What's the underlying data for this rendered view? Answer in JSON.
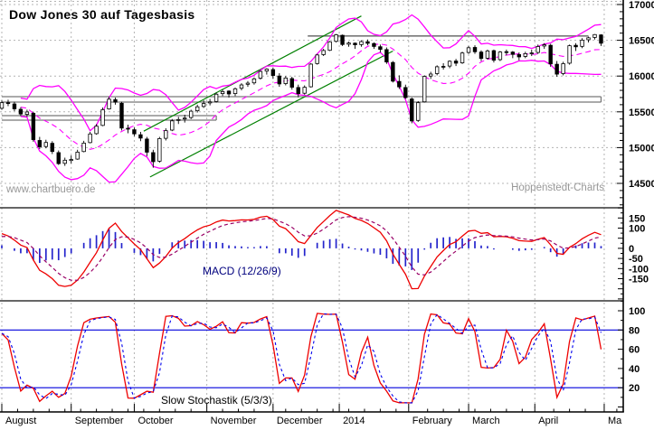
{
  "title": "Dow Jones 30 auf Tagesbasis",
  "watermarks": {
    "left": "www.chartbuero.de",
    "right": "Hoppenstedt-Charts"
  },
  "colors": {
    "candle": "#000000",
    "candle_up_fill": "#ffffff",
    "bollinger": "#ff00ff",
    "trendline": "#008000",
    "support_line": "#787878",
    "macd_line": "#ee0000",
    "macd_signal": "#990066",
    "macd_histogram": "#2424cc",
    "stoch_k": "#ee0000",
    "stoch_d": "#0000ee",
    "stoch_levels": "#0000dd",
    "grid": "#b4b4b4",
    "axis": "#000000",
    "watermark": "#989898",
    "macd_label_text": "#00007e"
  },
  "chart_data": {
    "type": "candlestick_with_indicators",
    "title": "Dow Jones 30 auf Tagesbasis",
    "x_axis": {
      "tick_labels": [
        "August",
        "September",
        "October",
        "November",
        "December",
        "2014",
        "February",
        "March",
        "April",
        "Ma"
      ],
      "tick_days": [
        0,
        22,
        42,
        65,
        86,
        107,
        129,
        148,
        169,
        191
      ],
      "minor_tick_step_days": 5,
      "total_days": 197
    },
    "price_panel": {
      "ylim": [
        14160,
        17063
      ],
      "yticks": [
        17000,
        16500,
        16000,
        15500,
        15000,
        14500
      ],
      "bollinger_period": 20,
      "candle_day_step": 2,
      "candles": [
        [
          15550,
          15658,
          15530,
          15628
        ],
        [
          15628,
          15670,
          15580,
          15618
        ],
        [
          15610,
          15640,
          15510,
          15542
        ],
        [
          15535,
          15565,
          15440,
          15470
        ],
        [
          15465,
          15530,
          15430,
          15498
        ],
        [
          15480,
          15500,
          15082,
          15112
        ],
        [
          15100,
          15150,
          14980,
          15010
        ],
        [
          15015,
          15110,
          14990,
          15072
        ],
        [
          15060,
          15090,
          14910,
          14946
        ],
        [
          14930,
          14960,
          14758,
          14776
        ],
        [
          14780,
          14860,
          14745,
          14824
        ],
        [
          14820,
          14890,
          14780,
          14834
        ],
        [
          14840,
          14970,
          14830,
          14937
        ],
        [
          14945,
          15095,
          14935,
          15063
        ],
        [
          15070,
          15220,
          15060,
          15191
        ],
        [
          15195,
          15330,
          15180,
          15300
        ],
        [
          15310,
          15560,
          15300,
          15530
        ],
        [
          15540,
          15709,
          15530,
          15677
        ],
        [
          15670,
          15700,
          15600,
          15636
        ],
        [
          15620,
          15640,
          15240,
          15273
        ],
        [
          15270,
          15320,
          15200,
          15258
        ],
        [
          15250,
          15280,
          15160,
          15192
        ],
        [
          15180,
          15220,
          15090,
          15133
        ],
        [
          15120,
          15150,
          14880,
          14936
        ],
        [
          14930,
          14970,
          14719,
          14803
        ],
        [
          14810,
          15150,
          14790,
          15126
        ],
        [
          15130,
          15270,
          15100,
          15237
        ],
        [
          15245,
          15400,
          15230,
          15374
        ],
        [
          15380,
          15430,
          15330,
          15392
        ],
        [
          15400,
          15460,
          15350,
          15413
        ],
        [
          15420,
          15530,
          15400,
          15509
        ],
        [
          15515,
          15600,
          15490,
          15570
        ],
        [
          15575,
          15660,
          15555,
          15616
        ],
        [
          15625,
          15680,
          15590,
          15639
        ],
        [
          15645,
          15770,
          15630,
          15747
        ],
        [
          15755,
          15810,
          15720,
          15783
        ],
        [
          15790,
          15800,
          15700,
          15750
        ],
        [
          15755,
          15840,
          15720,
          15822
        ],
        [
          15830,
          15900,
          15800,
          15876
        ],
        [
          15885,
          15930,
          15850,
          15901
        ],
        [
          15905,
          15980,
          15880,
          15961
        ],
        [
          15970,
          16080,
          15950,
          16065
        ],
        [
          16070,
          16110,
          16020,
          16097
        ],
        [
          16090,
          16120,
          15960,
          16008
        ],
        [
          16000,
          16040,
          15850,
          15890
        ],
        [
          15895,
          16000,
          15870,
          15973
        ],
        [
          15965,
          15990,
          15810,
          15844
        ],
        [
          15840,
          15880,
          15703,
          15755
        ],
        [
          15760,
          15870,
          15740,
          15843
        ],
        [
          15850,
          16180,
          15840,
          16167
        ],
        [
          16175,
          16310,
          16160,
          16295
        ],
        [
          16300,
          16380,
          16280,
          16357
        ],
        [
          16360,
          16490,
          16350,
          16479
        ],
        [
          16485,
          16588,
          16470,
          16577
        ],
        [
          16570,
          16580,
          16420,
          16441
        ],
        [
          16445,
          16480,
          16410,
          16462
        ],
        [
          16460,
          16470,
          16380,
          16437
        ],
        [
          16440,
          16500,
          16410,
          16482
        ],
        [
          16480,
          16510,
          16430,
          16458
        ],
        [
          16455,
          16470,
          16380,
          16414
        ],
        [
          16410,
          16440,
          16330,
          16373
        ],
        [
          16370,
          16400,
          16170,
          16197
        ],
        [
          16190,
          16210,
          15910,
          15929
        ],
        [
          15925,
          16010,
          15820,
          15849
        ],
        [
          15840,
          15880,
          15680,
          15699
        ],
        [
          15680,
          15700,
          15340,
          15373
        ],
        [
          15380,
          15650,
          15360,
          15628
        ],
        [
          15640,
          16010,
          15630,
          15995
        ],
        [
          16000,
          16060,
          15960,
          16028
        ],
        [
          16035,
          16150,
          16010,
          16130
        ],
        [
          16135,
          16180,
          16090,
          16133
        ],
        [
          16140,
          16220,
          16110,
          16207
        ],
        [
          16210,
          16240,
          16140,
          16180
        ],
        [
          16185,
          16340,
          16170,
          16322
        ],
        [
          16330,
          16420,
          16310,
          16396
        ],
        [
          16400,
          16430,
          16310,
          16340
        ],
        [
          16335,
          16360,
          16210,
          16247
        ],
        [
          16250,
          16370,
          16230,
          16351
        ],
        [
          16355,
          16370,
          16190,
          16222
        ],
        [
          16230,
          16350,
          16210,
          16336
        ],
        [
          16340,
          16370,
          16290,
          16331
        ],
        [
          16335,
          16350,
          16250,
          16303
        ],
        [
          16300,
          16330,
          16220,
          16268
        ],
        [
          16275,
          16340,
          16250,
          16313
        ],
        [
          16320,
          16370,
          16280,
          16323
        ],
        [
          16330,
          16440,
          16310,
          16413
        ],
        [
          16420,
          16460,
          16380,
          16437
        ],
        [
          16430,
          16450,
          16130,
          16170
        ],
        [
          16165,
          16210,
          15990,
          16027
        ],
        [
          16035,
          16200,
          16010,
          16173
        ],
        [
          16180,
          16440,
          16160,
          16424
        ],
        [
          16430,
          16460,
          16350,
          16409
        ],
        [
          16415,
          16530,
          16390,
          16502
        ],
        [
          16508,
          16550,
          16470,
          16535
        ],
        [
          16540,
          16587,
          16510,
          16580
        ],
        [
          16575,
          16585,
          16420,
          16459
        ]
      ]
    },
    "macd_panel": {
      "label": "MACD (12/26/9)",
      "params": [
        12,
        26,
        9
      ],
      "ylim": [
        -259,
        200
      ],
      "yticks": [
        150,
        100,
        0,
        -50,
        -100,
        -150
      ]
    },
    "stoch_panel": {
      "label": "Slow Stochastik (5/3/3)",
      "params": [
        5,
        3,
        3
      ],
      "ylim": [
        -6,
        110
      ],
      "yticks": [
        100,
        80,
        60,
        40,
        20
      ],
      "levels": [
        80,
        20
      ]
    },
    "annotations": {
      "trendlines": [
        {
          "day1": 45,
          "price1": 15230,
          "day2": 114,
          "price2": 16840
        },
        {
          "day1": 47,
          "price1": 14590,
          "day2": 124,
          "price2": 16350
        }
      ],
      "support_boxes": [
        {
          "price_top": 15712,
          "price_bottom": 15636,
          "day1": 0,
          "day2": 190
        },
        {
          "price_top": 15447,
          "price_bottom": 15384,
          "day1": 0,
          "day2": 68
        }
      ],
      "resistance_lines": [
        {
          "price": 16560,
          "day1": 97,
          "day2": 186
        }
      ]
    }
  }
}
